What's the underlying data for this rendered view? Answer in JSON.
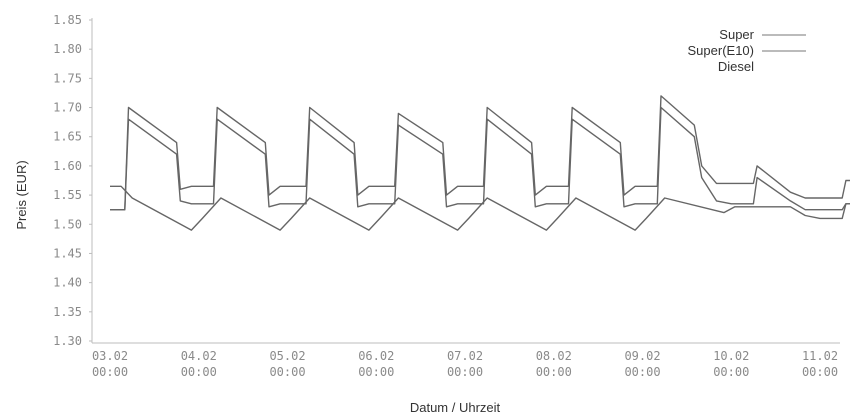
{
  "chart_data": {
    "type": "line",
    "title": "",
    "xlabel": "Datum / Uhrzeit",
    "ylabel": "Preis (EUR)",
    "ylim": [
      1.3,
      1.85
    ],
    "yticks": [
      "1.30",
      "1.35",
      "1.40",
      "1.45",
      "1.50",
      "1.55",
      "1.60",
      "1.65",
      "1.70",
      "1.75",
      "1.80",
      "1.85"
    ],
    "xlim": [
      "2014-02-03 00:00",
      "2014-02-11 00:00"
    ],
    "xticks": [
      {
        "date": "03.02",
        "time": "00:00"
      },
      {
        "date": "04.02",
        "time": "00:00"
      },
      {
        "date": "05.02",
        "time": "00:00"
      },
      {
        "date": "06.02",
        "time": "00:00"
      },
      {
        "date": "07.02",
        "time": "00:00"
      },
      {
        "date": "08.02",
        "time": "00:00"
      },
      {
        "date": "09.02",
        "time": "00:00"
      },
      {
        "date": "10.02",
        "time": "00:00"
      },
      {
        "date": "11.02",
        "time": "00:00"
      }
    ],
    "legend_position": "top-right",
    "grid": false,
    "series": [
      {
        "name": "Super",
        "color": "#666666",
        "points": [
          [
            "02-03 00:00",
            1.525
          ],
          [
            "02-03 04:00",
            1.525
          ],
          [
            "02-03 05:00",
            1.7
          ],
          [
            "02-03 18:00",
            1.64
          ],
          [
            "02-03 19:00",
            1.56
          ],
          [
            "02-03 22:00",
            1.565
          ],
          [
            "02-04 00:00",
            1.565
          ],
          [
            "02-04 04:00",
            1.565
          ],
          [
            "02-04 05:00",
            1.7
          ],
          [
            "02-04 18:00",
            1.64
          ],
          [
            "02-04 19:00",
            1.55
          ],
          [
            "02-04 22:00",
            1.565
          ],
          [
            "02-05 00:00",
            1.565
          ],
          [
            "02-05 05:00",
            1.565
          ],
          [
            "02-05 06:00",
            1.7
          ],
          [
            "02-05 18:00",
            1.64
          ],
          [
            "02-05 19:00",
            1.55
          ],
          [
            "02-05 22:00",
            1.565
          ],
          [
            "02-06 00:00",
            1.565
          ],
          [
            "02-06 05:00",
            1.565
          ],
          [
            "02-06 06:00",
            1.69
          ],
          [
            "02-06 18:00",
            1.64
          ],
          [
            "02-06 19:00",
            1.55
          ],
          [
            "02-06 22:00",
            1.565
          ],
          [
            "02-07 00:00",
            1.565
          ],
          [
            "02-07 05:00",
            1.565
          ],
          [
            "02-07 06:00",
            1.7
          ],
          [
            "02-07 18:00",
            1.64
          ],
          [
            "02-07 19:00",
            1.55
          ],
          [
            "02-07 22:00",
            1.565
          ],
          [
            "02-08 00:00",
            1.565
          ],
          [
            "02-08 04:00",
            1.565
          ],
          [
            "02-08 05:00",
            1.7
          ],
          [
            "02-08 18:00",
            1.64
          ],
          [
            "02-08 19:00",
            1.55
          ],
          [
            "02-08 22:00",
            1.565
          ],
          [
            "02-09 00:00",
            1.565
          ],
          [
            "02-09 04:00",
            1.565
          ],
          [
            "02-09 05:00",
            1.72
          ],
          [
            "02-09 14:00",
            1.67
          ],
          [
            "02-09 16:00",
            1.6
          ],
          [
            "02-09 20:00",
            1.57
          ],
          [
            "02-10 00:00",
            1.57
          ],
          [
            "02-10 06:00",
            1.57
          ],
          [
            "02-10 07:00",
            1.6
          ],
          [
            "02-10 16:00",
            1.555
          ],
          [
            "02-10 20:00",
            1.545
          ],
          [
            "02-11 00:00",
            1.545
          ],
          [
            "02-11 06:00",
            1.545
          ],
          [
            "02-11 07:00",
            1.575
          ],
          [
            "02-11 10:00",
            1.575
          ]
        ]
      },
      {
        "name": "Super(E10)",
        "color": "#666666",
        "points": [
          [
            "02-03 00:00",
            1.525
          ],
          [
            "02-03 04:00",
            1.525
          ],
          [
            "02-03 05:00",
            1.68
          ],
          [
            "02-03 18:00",
            1.62
          ],
          [
            "02-03 19:00",
            1.54
          ],
          [
            "02-03 22:00",
            1.535
          ],
          [
            "02-04 00:00",
            1.535
          ],
          [
            "02-04 04:00",
            1.535
          ],
          [
            "02-04 05:00",
            1.68
          ],
          [
            "02-04 18:00",
            1.62
          ],
          [
            "02-04 19:00",
            1.53
          ],
          [
            "02-04 22:00",
            1.535
          ],
          [
            "02-05 00:00",
            1.535
          ],
          [
            "02-05 05:00",
            1.535
          ],
          [
            "02-05 06:00",
            1.68
          ],
          [
            "02-05 18:00",
            1.62
          ],
          [
            "02-05 19:00",
            1.53
          ],
          [
            "02-05 22:00",
            1.535
          ],
          [
            "02-06 00:00",
            1.535
          ],
          [
            "02-06 05:00",
            1.535
          ],
          [
            "02-06 06:00",
            1.67
          ],
          [
            "02-06 18:00",
            1.62
          ],
          [
            "02-06 19:00",
            1.53
          ],
          [
            "02-06 22:00",
            1.535
          ],
          [
            "02-07 00:00",
            1.535
          ],
          [
            "02-07 05:00",
            1.535
          ],
          [
            "02-07 06:00",
            1.68
          ],
          [
            "02-07 18:00",
            1.62
          ],
          [
            "02-07 19:00",
            1.53
          ],
          [
            "02-07 22:00",
            1.535
          ],
          [
            "02-08 00:00",
            1.535
          ],
          [
            "02-08 04:00",
            1.535
          ],
          [
            "02-08 05:00",
            1.68
          ],
          [
            "02-08 18:00",
            1.62
          ],
          [
            "02-08 19:00",
            1.53
          ],
          [
            "02-08 22:00",
            1.535
          ],
          [
            "02-09 00:00",
            1.535
          ],
          [
            "02-09 04:00",
            1.535
          ],
          [
            "02-09 05:00",
            1.7
          ],
          [
            "02-09 14:00",
            1.65
          ],
          [
            "02-09 16:00",
            1.58
          ],
          [
            "02-09 20:00",
            1.54
          ],
          [
            "02-10 00:00",
            1.535
          ],
          [
            "02-10 06:00",
            1.535
          ],
          [
            "02-10 07:00",
            1.58
          ],
          [
            "02-10 16:00",
            1.54
          ],
          [
            "02-10 20:00",
            1.525
          ],
          [
            "02-11 00:00",
            1.525
          ],
          [
            "02-11 06:00",
            1.525
          ],
          [
            "02-11 07:00",
            1.535
          ],
          [
            "02-11 10:00",
            1.535
          ]
        ]
      },
      {
        "name": "Diesel",
        "color": "#666666",
        "points": [
          [
            "02-03 00:00",
            1.565
          ],
          [
            "02-03 03:00",
            1.565
          ],
          [
            "02-03 06:00",
            1.545
          ],
          [
            "02-03 22:00",
            1.49
          ],
          [
            "02-04 01:00",
            1.51
          ],
          [
            "02-04 06:00",
            1.545
          ],
          [
            "02-04 22:00",
            1.49
          ],
          [
            "02-05 01:00",
            1.51
          ],
          [
            "02-05 06:00",
            1.545
          ],
          [
            "02-05 22:00",
            1.49
          ],
          [
            "02-06 01:00",
            1.51
          ],
          [
            "02-06 06:00",
            1.545
          ],
          [
            "02-06 22:00",
            1.49
          ],
          [
            "02-07 01:00",
            1.51
          ],
          [
            "02-07 06:00",
            1.545
          ],
          [
            "02-07 22:00",
            1.49
          ],
          [
            "02-08 01:00",
            1.51
          ],
          [
            "02-08 06:00",
            1.545
          ],
          [
            "02-08 22:00",
            1.49
          ],
          [
            "02-09 01:00",
            1.51
          ],
          [
            "02-09 06:00",
            1.545
          ],
          [
            "02-09 22:00",
            1.52
          ],
          [
            "02-10 01:00",
            1.53
          ],
          [
            "02-10 06:00",
            1.53
          ],
          [
            "02-10 16:00",
            1.53
          ],
          [
            "02-10 20:00",
            1.515
          ],
          [
            "02-11 00:00",
            1.51
          ],
          [
            "02-11 06:00",
            1.51
          ],
          [
            "02-11 07:00",
            1.535
          ],
          [
            "02-11 10:00",
            1.535
          ]
        ]
      }
    ]
  }
}
